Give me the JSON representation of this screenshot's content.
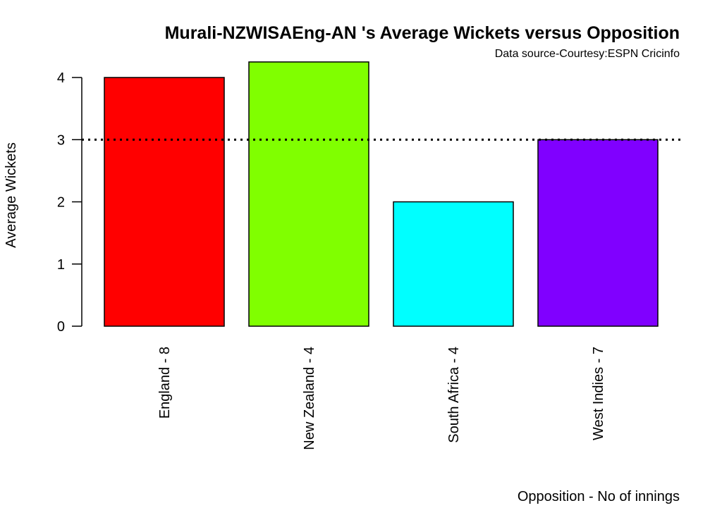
{
  "chart_data": {
    "type": "bar",
    "title": "Murali-NZWISAEng-AN 's Average Wickets versus Opposition",
    "subtitle": "Data source-Courtesy:ESPN Cricinfo",
    "xlabel": "Opposition - No of innings",
    "ylabel": "Average Wickets",
    "categories": [
      "England - 8",
      "New Zealand - 4",
      "South Africa - 4",
      "West Indies - 7"
    ],
    "values": [
      4.0,
      4.25,
      2.0,
      3.0
    ],
    "colors": [
      "#ff0000",
      "#80ff00",
      "#00ffff",
      "#8000ff"
    ],
    "ylim": [
      0,
      4.25
    ],
    "yticks": [
      "0",
      "1",
      "2",
      "3",
      "4"
    ],
    "reference_line": {
      "y": 3,
      "style": "dotted"
    },
    "grid": false,
    "legend": "none",
    "colors_meta": {
      "subtitle": "#0000ff",
      "bar_border": "#000000",
      "background": "#ffffff"
    }
  }
}
